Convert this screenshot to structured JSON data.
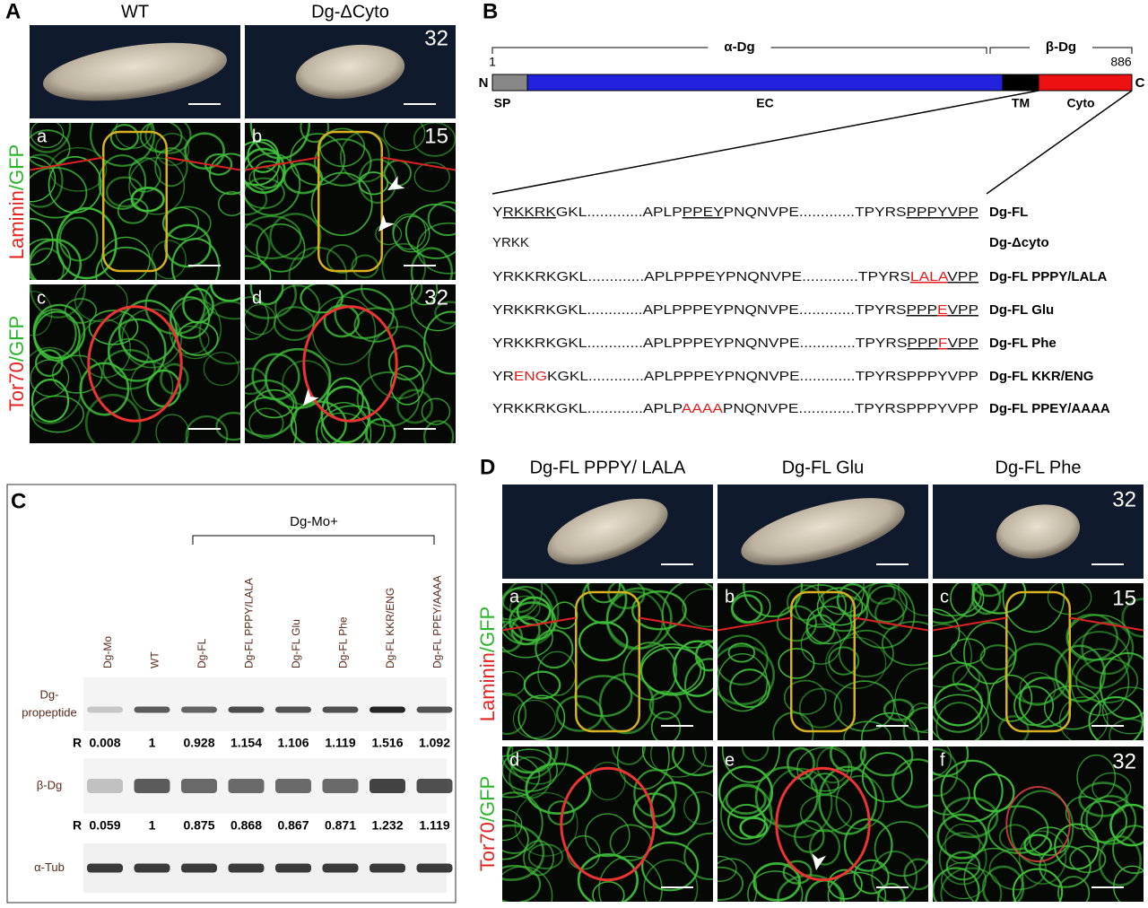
{
  "panel_a": {
    "label": "A",
    "columns": [
      "WT",
      "Dg-ΔCyto"
    ],
    "stages": [
      32,
      15,
      32
    ],
    "sublabels": [
      "a",
      "b",
      "c",
      "d"
    ],
    "row_labels": [
      {
        "marker": "Laminin",
        "stain": "/GFP"
      },
      {
        "marker": "Tor70",
        "stain": "/GFP"
      }
    ]
  },
  "panel_b": {
    "label": "B",
    "regions": [
      "α-Dg",
      "β-Dg"
    ],
    "start": 1,
    "end": 886,
    "n_term": "N",
    "c_term": "C",
    "domains": [
      "SP",
      "EC",
      "TM",
      "Cyto"
    ],
    "sequences": [
      {
        "segments": [
          {
            "text": "Y"
          },
          {
            "text": "RKKRK",
            "underline": true
          },
          {
            "text": "GKL.............APLP"
          },
          {
            "text": "PPEY",
            "underline": true
          },
          {
            "text": "PNQNVPE.............TPYRS"
          },
          {
            "text": "PPPYVPP",
            "underline": true
          }
        ],
        "name": "Dg-FL"
      },
      {
        "segments": [
          {
            "text": "YRKK"
          }
        ],
        "name": "Dg-Δcyto"
      },
      {
        "segments": [
          {
            "text": "YRKKRKGKL.............APLPPPEYPNQNVPE.............TPYRS"
          },
          {
            "text": "LALA",
            "underline": true,
            "red": true
          },
          {
            "text": "VPP",
            "underline": true
          }
        ],
        "name": "Dg-FL PPPY/LALA"
      },
      {
        "segments": [
          {
            "text": "YRKKRKGKL.............APLPPPEYPNQNVPE.............TPYRS"
          },
          {
            "text": "PPP",
            "underline": true
          },
          {
            "text": "E",
            "underline": true,
            "red": true
          },
          {
            "text": "VPP",
            "underline": true
          }
        ],
        "name": "Dg-FL Glu"
      },
      {
        "segments": [
          {
            "text": "YRKKRKGKL.............APLPPPEYPNQNVPE.............TPYRS"
          },
          {
            "text": "PPP",
            "underline": true
          },
          {
            "text": "F",
            "underline": true,
            "red": true
          },
          {
            "text": "VPP",
            "underline": true
          }
        ],
        "name": "Dg-FL Phe"
      },
      {
        "segments": [
          {
            "text": "YR"
          },
          {
            "text": "ENG",
            "red": true
          },
          {
            "text": "KGKL.............APLPPPEYPNQNVPE.............TPYRSPPPYVPP"
          }
        ],
        "name": "Dg-FL KKR/ENG"
      },
      {
        "segments": [
          {
            "text": "YRKKRKGKL.............APLP"
          },
          {
            "text": "AAAA",
            "red": true
          },
          {
            "text": "PNQNVPE.............TPYRSPPPYVPP"
          }
        ],
        "name": "Dg-FL PPEY/AAAA"
      }
    ]
  },
  "panel_c": {
    "label": "C",
    "group": "Dg-Mo+",
    "lanes": [
      "Dg-Mo",
      "WT",
      "Dg-FL",
      "Dg-FL PPPY/LALA",
      "Dg-FL Glu",
      "Dg-FL Phe",
      "Dg-FL KKR/ENG",
      "Dg-FL PPEY/AAAA"
    ],
    "blots": [
      {
        "name": [
          "Dg-",
          "propeptide"
        ],
        "ratio_label": "R",
        "ratios": [
          0.008,
          1,
          0.928,
          1.154,
          1.106,
          1.119,
          1.516,
          1.092
        ]
      },
      {
        "name": [
          "β-Dg"
        ],
        "ratio_label": "R",
        "ratios": [
          0.059,
          1,
          0.875,
          0.868,
          0.867,
          0.871,
          1.232,
          1.119
        ]
      },
      {
        "name": [
          "α-Tub"
        ]
      }
    ]
  },
  "panel_d": {
    "label": "D",
    "columns": [
      "Dg-FL PPPY/ LALA",
      "Dg-FL Glu",
      "Dg-FL Phe"
    ],
    "stages": [
      32,
      15,
      32
    ],
    "sublabels": [
      "a",
      "b",
      "c",
      "d",
      "e",
      "f"
    ],
    "row_labels": [
      {
        "marker": "Laminin",
        "stain": "/GFP"
      },
      {
        "marker": "Tor70",
        "stain": "/GFP"
      }
    ]
  }
}
